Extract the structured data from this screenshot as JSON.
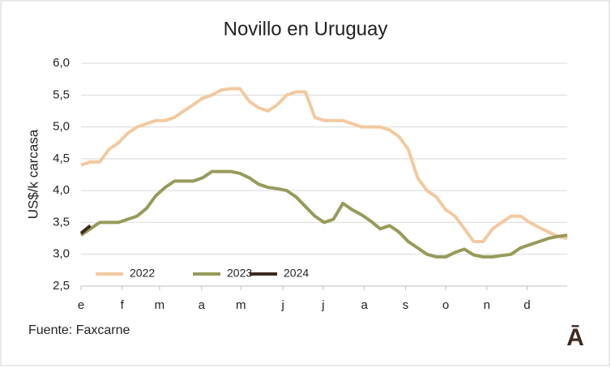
{
  "chart_data": {
    "type": "line",
    "title": "Novillo en Uruguay",
    "ylabel": "US$/k carcasa",
    "source": "Fuente: Faxcarne",
    "logo": "Ā",
    "x": [
      1,
      2,
      3,
      4,
      5,
      6,
      7,
      8,
      9,
      10,
      11,
      12,
      13,
      14,
      15,
      16,
      17,
      18,
      19,
      20,
      21,
      22,
      23,
      24,
      25,
      26,
      27,
      28,
      29,
      30,
      31,
      32,
      33,
      34,
      35,
      36,
      37,
      38,
      39,
      40,
      41,
      42,
      43,
      44,
      45,
      46,
      47,
      48,
      49,
      50,
      51,
      52,
      53
    ],
    "xlim": [
      1,
      53
    ],
    "xticks": [
      {
        "value": 1,
        "label": "e"
      },
      {
        "value": 5.4,
        "label": "f"
      },
      {
        "value": 9.4,
        "label": "m"
      },
      {
        "value": 13.9,
        "label": "a"
      },
      {
        "value": 18.1,
        "label": "m"
      },
      {
        "value": 22.6,
        "label": "j"
      },
      {
        "value": 26.9,
        "label": "j"
      },
      {
        "value": 31.3,
        "label": "a"
      },
      {
        "value": 35.7,
        "label": "s"
      },
      {
        "value": 40,
        "label": "o"
      },
      {
        "value": 44.4,
        "label": "n"
      },
      {
        "value": 48.7,
        "label": "d"
      }
    ],
    "ylim": [
      2.5,
      6
    ],
    "yticks": [
      {
        "value": 2.5,
        "label": "2,5"
      },
      {
        "value": 3,
        "label": "3,0"
      },
      {
        "value": 3.5,
        "label": "3,5"
      },
      {
        "value": 4,
        "label": "4,0"
      },
      {
        "value": 4.5,
        "label": "4,5"
      },
      {
        "value": 5,
        "label": "5,0"
      },
      {
        "value": 5.5,
        "label": "5,5"
      },
      {
        "value": 6,
        "label": "6,0"
      }
    ],
    "grid": true,
    "legend": "bottom-left",
    "series": [
      {
        "name": "2022",
        "color": "#f2c9a0",
        "values": [
          4.4,
          4.45,
          4.45,
          4.65,
          4.75,
          4.9,
          5.0,
          5.05,
          5.1,
          5.1,
          5.15,
          5.25,
          5.35,
          5.45,
          5.5,
          5.58,
          5.6,
          5.6,
          5.4,
          5.3,
          5.25,
          5.35,
          5.5,
          5.55,
          5.55,
          5.15,
          5.1,
          5.1,
          5.1,
          5.05,
          5.0,
          5.0,
          5.0,
          4.95,
          4.85,
          4.65,
          4.2,
          4.0,
          3.9,
          3.7,
          3.6,
          3.4,
          3.2,
          3.2,
          3.4,
          3.5,
          3.6,
          3.6,
          3.5,
          3.42,
          3.35,
          3.28,
          3.25
        ]
      },
      {
        "name": "2023",
        "color": "#989a5a",
        "values": [
          3.3,
          3.4,
          3.5,
          3.5,
          3.5,
          3.55,
          3.6,
          3.72,
          3.92,
          4.05,
          4.15,
          4.15,
          4.15,
          4.2,
          4.3,
          4.3,
          4.3,
          4.27,
          4.2,
          4.1,
          4.05,
          4.03,
          4.0,
          3.9,
          3.75,
          3.6,
          3.5,
          3.55,
          3.8,
          3.7,
          3.62,
          3.52,
          3.4,
          3.45,
          3.35,
          3.2,
          3.1,
          3.0,
          2.96,
          2.96,
          3.03,
          3.08,
          2.99,
          2.96,
          2.96,
          2.98,
          3.0,
          3.1,
          3.15,
          3.2,
          3.25,
          3.28,
          3.3
        ]
      },
      {
        "name": "2024",
        "color": "#3d2b1f",
        "values": [
          3.33,
          3.45,
          null,
          null,
          null,
          null,
          null,
          null,
          null,
          null,
          null,
          null,
          null,
          null,
          null,
          null,
          null,
          null,
          null,
          null,
          null,
          null,
          null,
          null,
          null,
          null,
          null,
          null,
          null,
          null,
          null,
          null,
          null,
          null,
          null,
          null,
          null,
          null,
          null,
          null,
          null,
          null,
          null,
          null,
          null,
          null,
          null,
          null,
          null,
          null,
          null,
          null,
          null
        ]
      }
    ]
  }
}
